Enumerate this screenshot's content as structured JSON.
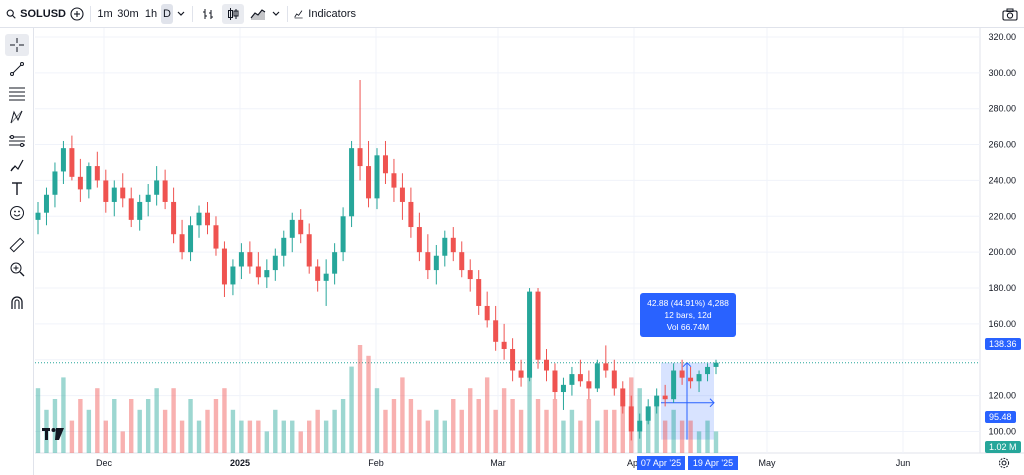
{
  "toolbar": {
    "symbol": "SOLUSD",
    "timeframes": [
      "1m",
      "30m",
      "1h",
      "D"
    ],
    "active_timeframe": "D",
    "indicators_label": "Indicators"
  },
  "left_tools": [
    "crosshair-icon",
    "trendline-icon",
    "fib-icon",
    "pattern-icon",
    "prediction-icon",
    "brush-icon",
    "text-icon",
    "emoji-icon",
    "ruler-icon",
    "zoom-icon",
    "magnet-icon"
  ],
  "measure": {
    "line1": "42.88 (44.91%) 4,288",
    "line2": "12 bars, 12d",
    "line3": "Vol 66.74M",
    "start_date": "07 Apr '25",
    "end_date": "19 Apr '25",
    "top_price": "138.36",
    "bottom_price": "95.48"
  },
  "volume_label": "1.02 M",
  "colors": {
    "up": "#26a69a",
    "down": "#ef5350",
    "accent": "#2962ff"
  },
  "chart_data": {
    "type": "candlestick",
    "symbol": "SOLUSD",
    "interval": "1D",
    "y_ticks": [
      100,
      120,
      140,
      160,
      180,
      200,
      220,
      240,
      260,
      280,
      300,
      320
    ],
    "y_tick_labels": [
      "100.00",
      "120.00",
      "",
      "160.00",
      "180.00",
      "200.00",
      "220.00",
      "240.00",
      "260.00",
      "280.00",
      "300.00",
      "320.00"
    ],
    "x_tick_labels": [
      "Dec",
      "2025",
      "Feb",
      "Mar",
      "Apr",
      "May",
      "Jun"
    ],
    "last_price": 138.36,
    "ylim": [
      88,
      325
    ],
    "candles": [
      [
        218,
        228,
        210,
        222
      ],
      [
        222,
        236,
        215,
        232
      ],
      [
        232,
        250,
        225,
        245
      ],
      [
        245,
        262,
        238,
        258
      ],
      [
        258,
        265,
        240,
        242
      ],
      [
        242,
        252,
        228,
        235
      ],
      [
        235,
        250,
        230,
        248
      ],
      [
        248,
        256,
        236,
        240
      ],
      [
        240,
        246,
        222,
        228
      ],
      [
        228,
        240,
        220,
        236
      ],
      [
        236,
        244,
        225,
        230
      ],
      [
        230,
        236,
        214,
        218
      ],
      [
        218,
        232,
        212,
        228
      ],
      [
        228,
        238,
        220,
        232
      ],
      [
        232,
        248,
        226,
        240
      ],
      [
        240,
        246,
        224,
        228
      ],
      [
        228,
        236,
        205,
        210
      ],
      [
        210,
        218,
        196,
        200
      ],
      [
        200,
        220,
        195,
        215
      ],
      [
        215,
        226,
        208,
        222
      ],
      [
        222,
        228,
        210,
        215
      ],
      [
        215,
        220,
        198,
        202
      ],
      [
        202,
        206,
        175,
        182
      ],
      [
        182,
        196,
        176,
        192
      ],
      [
        192,
        205,
        185,
        200
      ],
      [
        200,
        206,
        188,
        192
      ],
      [
        192,
        200,
        182,
        186
      ],
      [
        186,
        196,
        180,
        190
      ],
      [
        190,
        202,
        184,
        198
      ],
      [
        198,
        212,
        192,
        208
      ],
      [
        208,
        222,
        200,
        218
      ],
      [
        218,
        224,
        205,
        210
      ],
      [
        210,
        216,
        188,
        192
      ],
      [
        192,
        196,
        178,
        184
      ],
      [
        184,
        196,
        170,
        188
      ],
      [
        188,
        205,
        182,
        200
      ],
      [
        200,
        225,
        195,
        220
      ],
      [
        220,
        262,
        214,
        258
      ],
      [
        258,
        296,
        240,
        248
      ],
      [
        248,
        262,
        225,
        230
      ],
      [
        230,
        258,
        224,
        254
      ],
      [
        254,
        262,
        238,
        244
      ],
      [
        244,
        252,
        228,
        236
      ],
      [
        236,
        244,
        218,
        228
      ],
      [
        228,
        236,
        208,
        214
      ],
      [
        214,
        222,
        195,
        200
      ],
      [
        200,
        210,
        185,
        190
      ],
      [
        190,
        204,
        182,
        198
      ],
      [
        198,
        212,
        192,
        208
      ],
      [
        208,
        214,
        195,
        200
      ],
      [
        200,
        206,
        186,
        190
      ],
      [
        190,
        196,
        178,
        185
      ],
      [
        185,
        190,
        165,
        170
      ],
      [
        170,
        178,
        158,
        162
      ],
      [
        162,
        170,
        145,
        150
      ],
      [
        150,
        160,
        140,
        146
      ],
      [
        146,
        152,
        128,
        134
      ],
      [
        134,
        140,
        125,
        130
      ],
      [
        130,
        180,
        128,
        178
      ],
      [
        178,
        180,
        135,
        140
      ],
      [
        140,
        146,
        128,
        134
      ],
      [
        134,
        138,
        118,
        122
      ],
      [
        122,
        130,
        112,
        126
      ],
      [
        126,
        136,
        120,
        132
      ],
      [
        132,
        140,
        125,
        128
      ],
      [
        128,
        134,
        118,
        124
      ],
      [
        124,
        140,
        122,
        138
      ],
      [
        138,
        148,
        130,
        134
      ],
      [
        134,
        140,
        120,
        124
      ],
      [
        124,
        128,
        110,
        114
      ],
      [
        114,
        120,
        95,
        100
      ],
      [
        100,
        110,
        96,
        106
      ],
      [
        106,
        118,
        104,
        114
      ],
      [
        114,
        124,
        110,
        120
      ],
      [
        120,
        126,
        114,
        118
      ],
      [
        118,
        138,
        116,
        134
      ],
      [
        134,
        140,
        126,
        130
      ],
      [
        130,
        136,
        124,
        128
      ],
      [
        128,
        134,
        122,
        132
      ],
      [
        132,
        138,
        128,
        136
      ],
      [
        136,
        140,
        132,
        138.36
      ]
    ],
    "volume_max": 1.02,
    "volumes_rel": [
      0.6,
      0.4,
      0.5,
      0.7,
      0.3,
      0.5,
      0.4,
      0.6,
      0.3,
      0.5,
      0.2,
      0.5,
      0.4,
      0.5,
      0.6,
      0.4,
      0.6,
      0.3,
      0.5,
      0.3,
      0.4,
      0.5,
      0.6,
      0.4,
      0.3,
      0.3,
      0.3,
      0.2,
      0.4,
      0.3,
      0.3,
      0.2,
      0.3,
      0.4,
      0.3,
      0.4,
      0.5,
      0.8,
      1.0,
      0.9,
      0.6,
      0.4,
      0.5,
      0.7,
      0.5,
      0.4,
      0.3,
      0.4,
      0.3,
      0.5,
      0.4,
      0.6,
      0.5,
      0.7,
      0.4,
      0.6,
      0.5,
      0.4,
      0.8,
      0.5,
      0.4,
      0.5,
      0.3,
      0.4,
      0.3,
      0.5,
      0.3,
      0.4,
      0.4,
      0.5,
      0.7,
      0.6,
      0.4,
      0.5,
      0.3,
      0.4,
      0.3,
      0.3,
      0.2,
      0.3,
      0.2
    ]
  }
}
